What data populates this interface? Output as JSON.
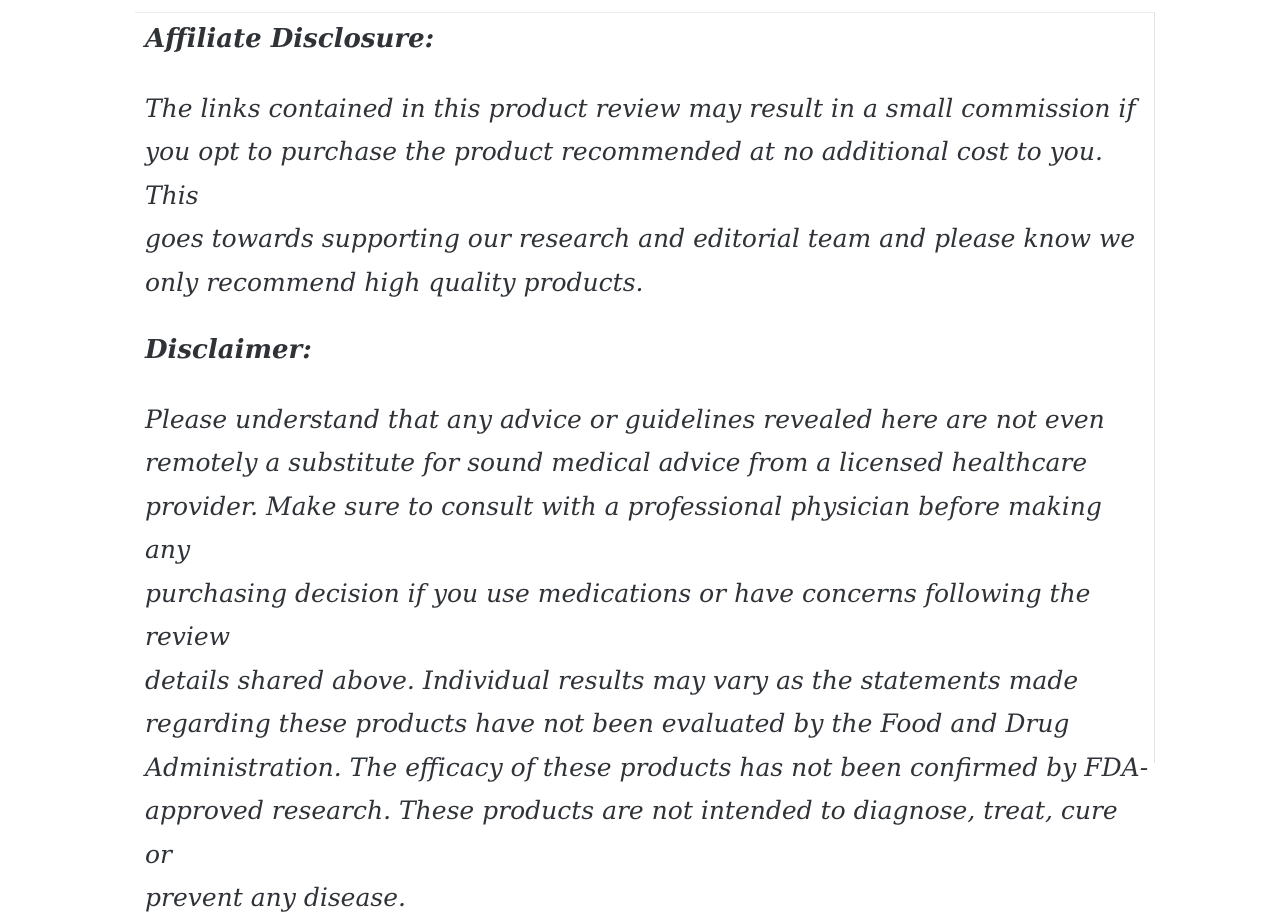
{
  "theme": {
    "page_background": "#ffffff",
    "text_color": "#2f3338",
    "card_border_top_color": "#ececec",
    "card_border_right_color": "#e3e3e3"
  },
  "article": {
    "sections": [
      {
        "heading": "Affiliate Disclosure:",
        "lines": [
          "The links contained in this product review may result in a small commission if",
          "you opt to purchase the product recommended at no additional cost to you. This",
          "goes towards supporting our research and editorial team and please know we",
          "only recommend high quality products."
        ]
      },
      {
        "heading": "Disclaimer:",
        "lines": [
          "Please understand that any advice or guidelines revealed here are not even",
          "remotely a substitute for sound medical advice from a licensed healthcare",
          "provider. Make sure to consult with a professional physician before making any",
          "purchasing decision if you use medications or have concerns following the review",
          "details shared above. Individual results may vary as the statements made",
          "regarding these products have not been evaluated by the Food and Drug",
          "Administration. The efficacy of these products has not been confirmed by FDA-",
          "approved research. These products are not intended to diagnose, treat, cure or",
          "prevent any disease."
        ]
      }
    ]
  }
}
